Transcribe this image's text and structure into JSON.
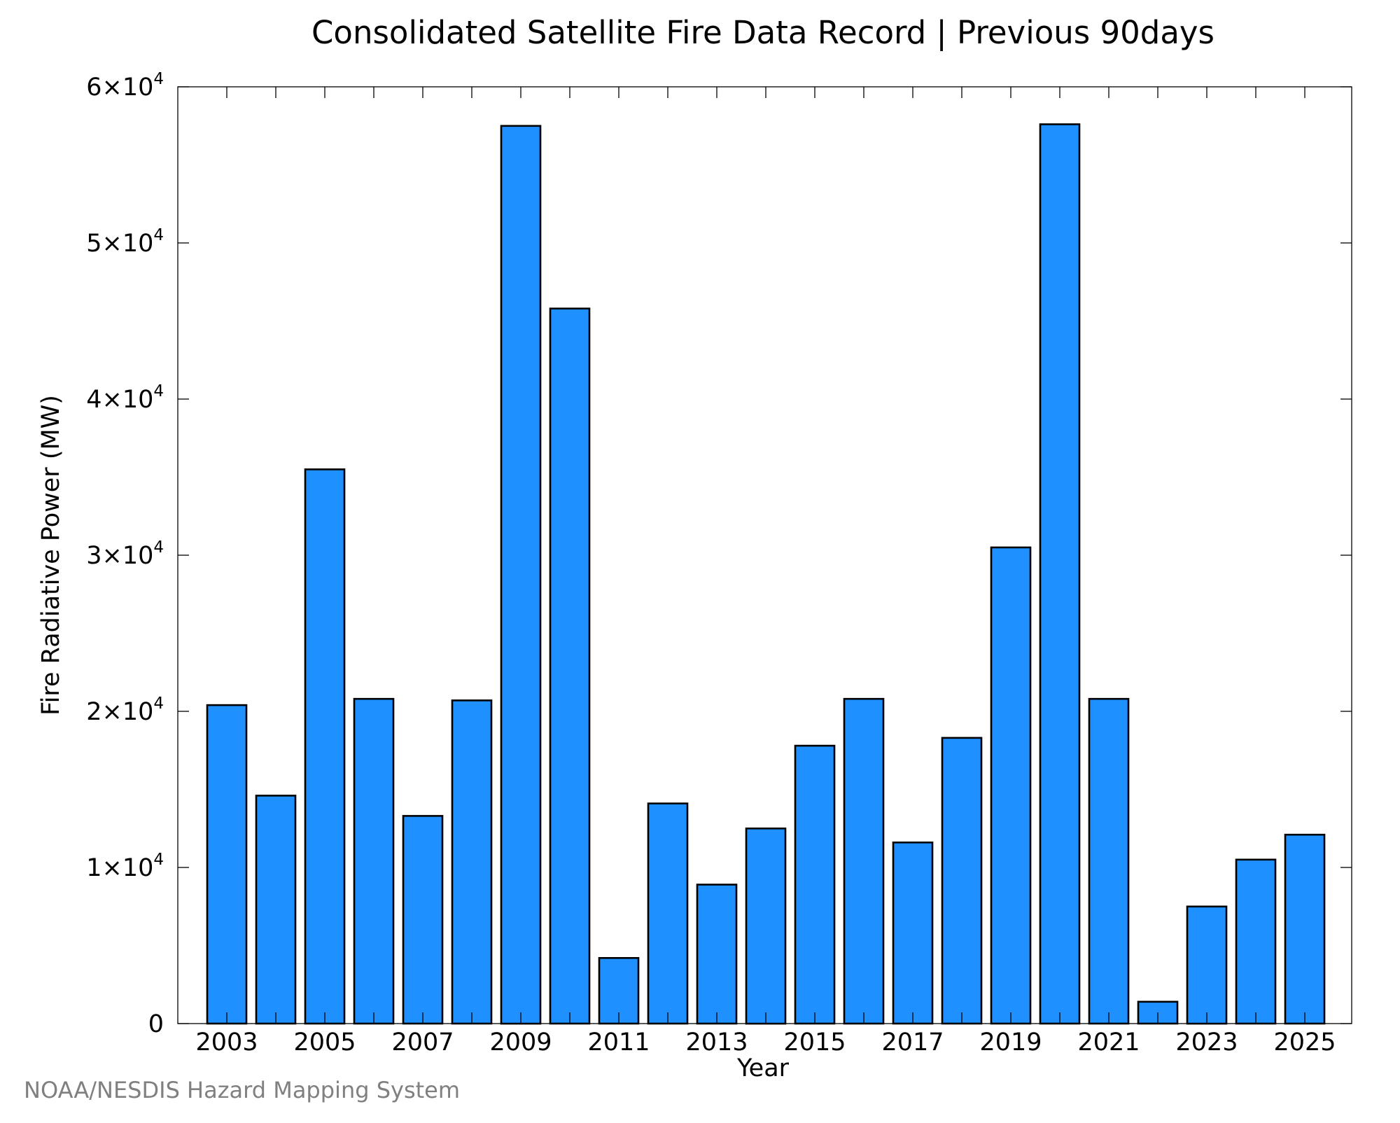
{
  "chart_data": {
    "type": "bar",
    "title": "Consolidated Satellite Fire Data Record | Previous 90days",
    "xlabel": "Year",
    "ylabel": "Fire Radiative Power (MW)",
    "ylim": [
      0,
      60000
    ],
    "bar_color": "#1E90FF",
    "edge_color": "#000000",
    "grid": false,
    "legend": "none",
    "categories": [
      "2003",
      "2004",
      "2005",
      "2006",
      "2007",
      "2008",
      "2009",
      "2010",
      "2011",
      "2012",
      "2013",
      "2014",
      "2015",
      "2016",
      "2017",
      "2018",
      "2019",
      "2020",
      "2021",
      "2022",
      "2023",
      "2024",
      "2025"
    ],
    "values": [
      20400,
      14600,
      35500,
      20800,
      13300,
      20700,
      57500,
      45800,
      4200,
      14100,
      8900,
      12500,
      17800,
      20800,
      11600,
      18300,
      30500,
      57600,
      20800,
      1400,
      7500,
      10500,
      12100
    ],
    "x_tick_labels": [
      "2003",
      "2005",
      "2007",
      "2009",
      "2011",
      "2013",
      "2015",
      "2017",
      "2019",
      "2021",
      "2023",
      "2025"
    ],
    "y_ticks": [
      {
        "value": 0,
        "mantissa": "0",
        "exponent": ""
      },
      {
        "value": 10000,
        "mantissa": "1×10",
        "exponent": "4"
      },
      {
        "value": 20000,
        "mantissa": "2×10",
        "exponent": "4"
      },
      {
        "value": 30000,
        "mantissa": "3×10",
        "exponent": "4"
      },
      {
        "value": 40000,
        "mantissa": "4×10",
        "exponent": "4"
      },
      {
        "value": 50000,
        "mantissa": "5×10",
        "exponent": "4"
      },
      {
        "value": 60000,
        "mantissa": "6×10",
        "exponent": "4"
      }
    ]
  },
  "footer": "NOAA/NESDIS Hazard Mapping System"
}
